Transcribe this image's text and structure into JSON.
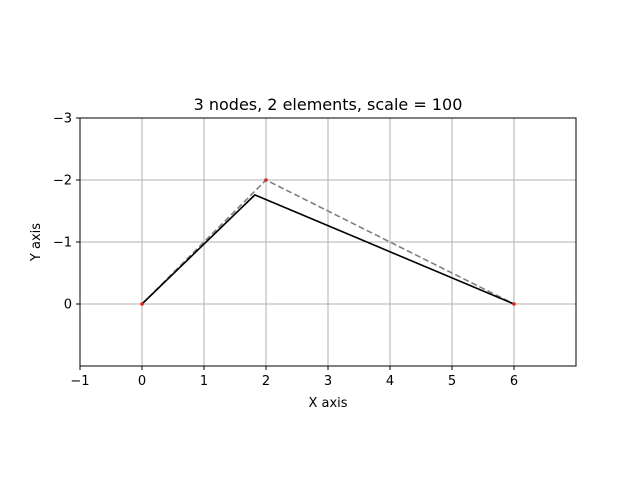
{
  "chart_data": {
    "type": "line",
    "title": "3 nodes, 2 elements, scale = 100",
    "xlabel": "X axis",
    "ylabel": "Y axis",
    "xlim": [
      -1,
      7
    ],
    "ylim": [
      1,
      -3
    ],
    "y_inverted": true,
    "grid": true,
    "xticks": [
      -1,
      0,
      1,
      2,
      3,
      4,
      5,
      6
    ],
    "xtick_labels": [
      "−1",
      "0",
      "1",
      "2",
      "3",
      "4",
      "5",
      "6"
    ],
    "yticks": [
      -3,
      -2,
      -1,
      0
    ],
    "ytick_labels": [
      "−3",
      "−2",
      "−1",
      "0"
    ],
    "series": [
      {
        "style": "dashed",
        "color": "#808080",
        "x": [
          0,
          2,
          6
        ],
        "y": [
          0,
          -2,
          0
        ]
      },
      {
        "style": "solid",
        "color": "#000000",
        "x": [
          0,
          1.82,
          6
        ],
        "y": [
          0,
          -1.76,
          0
        ]
      }
    ],
    "nodes": {
      "color": "#d62728",
      "x": [
        0,
        2,
        6
      ],
      "y": [
        0,
        -2,
        0
      ]
    }
  }
}
